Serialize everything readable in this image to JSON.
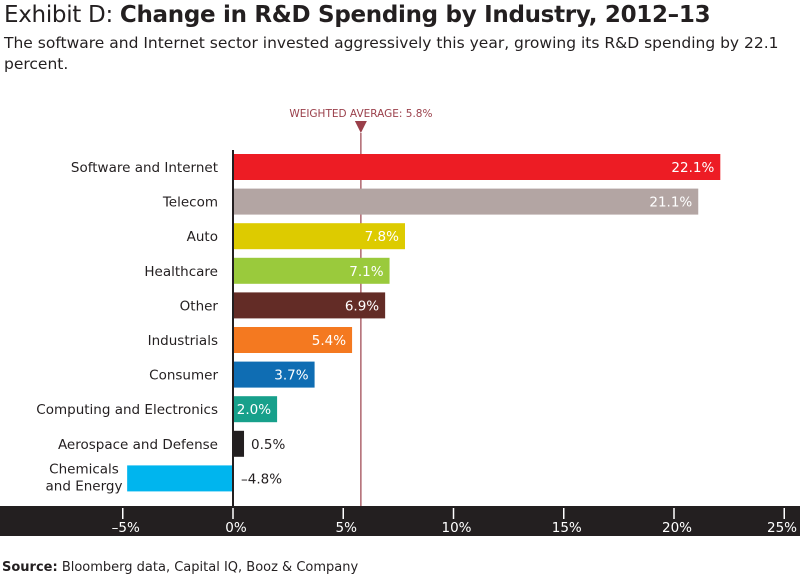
{
  "header": {
    "exhibit": "Exhibit D:",
    "title": "Change in R&D Spending by Industry, 2012–13",
    "subtitle": "The software and Internet sector invested aggressively this year, growing its R&D spending by 22.1 percent."
  },
  "footer": {
    "source_label": "Source:",
    "source_text": "Bloomberg data, Capital IQ, Booz & Company"
  },
  "chart_data": {
    "type": "bar",
    "orientation": "horizontal",
    "title": "Change in R&D Spending by Industry, 2012–13",
    "xlabel": "",
    "ylabel": "",
    "xlim": [
      -5,
      25
    ],
    "xticks": [
      -5,
      0,
      5,
      10,
      15,
      20,
      25
    ],
    "xtick_labels": [
      "–5%",
      "0%",
      "5%",
      "10%",
      "15%",
      "20%",
      "25%"
    ],
    "categories": [
      "Software and Internet",
      "Telecom",
      "Auto",
      "Healthcare",
      "Other",
      "Industrials",
      "Consumer",
      "Computing and Electronics",
      "Aerospace and Defense",
      "Chemicals and Energy"
    ],
    "values": [
      22.1,
      21.1,
      7.8,
      7.1,
      6.9,
      5.4,
      3.7,
      2.0,
      0.5,
      -4.8
    ],
    "value_labels": [
      "22.1%",
      "21.1%",
      "7.8%",
      "7.1%",
      "6.9%",
      "5.4%",
      "3.7%",
      "2.0%",
      "0.5%",
      "–4.8%"
    ],
    "colors": [
      "#ed1c24",
      "#b3a5a3",
      "#ddcb00",
      "#9aca3c",
      "#632c26",
      "#f47920",
      "#0f6db3",
      "#17a08b",
      "#231f20",
      "#00b5ee"
    ],
    "reference_line": {
      "value": 5.8,
      "label": "WEIGHTED AVERAGE: 5.8%",
      "color": "#9a3f4a"
    },
    "grid": false,
    "legend": "none"
  }
}
